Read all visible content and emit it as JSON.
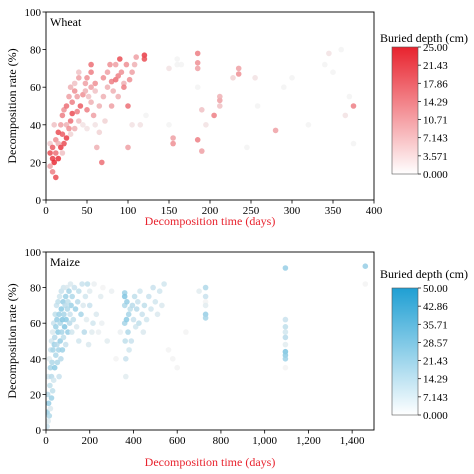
{
  "chart_data": [
    {
      "type": "scatter",
      "panel_label": "Wheat",
      "xlabel": "Decomposition time (days)",
      "ylabel": "Decomposition rate (%)",
      "xlim": [
        0,
        400
      ],
      "ylim": [
        0,
        100
      ],
      "xticks": [
        0,
        50,
        100,
        150,
        200,
        250,
        300,
        350,
        400
      ],
      "xtick_labels": [
        "0",
        "50",
        "100",
        "150",
        "200",
        "250",
        "300",
        "350",
        "400"
      ],
      "yticks": [
        0,
        20,
        40,
        60,
        80,
        100
      ],
      "ytick_labels": [
        "0",
        "20",
        "40",
        "60",
        "80",
        "100"
      ],
      "grid": false,
      "colorbar": {
        "title": "Buried depth (cm)",
        "min": 0,
        "max": 25,
        "low_color": "#ffffff",
        "high_color": "#e8232e",
        "tick_labels": [
          "25.00",
          "21.43",
          "17.86",
          "14.29",
          "10.71",
          "7.143",
          "3.571",
          "0.000"
        ]
      },
      "points": [
        [
          5,
          18,
          10
        ],
        [
          5,
          25,
          20
        ],
        [
          5,
          30,
          5
        ],
        [
          8,
          22,
          22
        ],
        [
          8,
          15,
          14
        ],
        [
          8,
          28,
          18
        ],
        [
          10,
          20,
          24
        ],
        [
          10,
          40,
          6
        ],
        [
          12,
          25,
          16
        ],
        [
          12,
          32,
          12
        ],
        [
          12,
          12,
          20
        ],
        [
          15,
          22,
          23
        ],
        [
          15,
          30,
          8
        ],
        [
          15,
          36,
          20
        ],
        [
          18,
          28,
          22
        ],
        [
          18,
          40,
          10
        ],
        [
          20,
          35,
          18
        ],
        [
          20,
          45,
          14
        ],
        [
          20,
          25,
          6
        ],
        [
          22,
          30,
          20
        ],
        [
          22,
          48,
          12
        ],
        [
          25,
          40,
          8
        ],
        [
          25,
          50,
          16
        ],
        [
          25,
          33,
          22
        ],
        [
          28,
          38,
          12
        ],
        [
          28,
          55,
          10
        ],
        [
          30,
          42,
          16
        ],
        [
          30,
          60,
          8
        ],
        [
          30,
          35,
          4
        ],
        [
          32,
          46,
          20
        ],
        [
          32,
          52,
          14
        ],
        [
          35,
          38,
          8
        ],
        [
          35,
          58,
          12
        ],
        [
          35,
          62,
          6
        ],
        [
          38,
          47,
          14
        ],
        [
          38,
          55,
          10
        ],
        [
          40,
          42,
          6
        ],
        [
          40,
          65,
          10
        ],
        [
          40,
          68,
          6
        ],
        [
          42,
          50,
          18
        ],
        [
          45,
          56,
          12
        ],
        [
          45,
          40,
          2
        ],
        [
          48,
          58,
          8
        ],
        [
          48,
          62,
          10
        ],
        [
          50,
          48,
          14
        ],
        [
          50,
          65,
          12
        ],
        [
          50,
          38,
          2
        ],
        [
          52,
          55,
          6
        ],
        [
          55,
          60,
          10
        ],
        [
          55,
          68,
          14
        ],
        [
          55,
          72,
          16
        ],
        [
          55,
          52,
          8
        ],
        [
          58,
          45,
          10
        ],
        [
          60,
          58,
          6
        ],
        [
          60,
          62,
          12
        ],
        [
          60,
          40,
          2
        ],
        [
          62,
          28,
          8
        ],
        [
          65,
          36,
          4
        ],
        [
          65,
          50,
          8
        ],
        [
          68,
          20,
          16
        ],
        [
          70,
          65,
          12
        ],
        [
          70,
          55,
          8
        ],
        [
          72,
          42,
          4
        ],
        [
          75,
          60,
          8
        ],
        [
          75,
          68,
          10
        ],
        [
          78,
          72,
          12
        ],
        [
          80,
          50,
          10
        ],
        [
          80,
          63,
          14
        ],
        [
          82,
          58,
          8
        ],
        [
          85,
          72,
          10
        ],
        [
          85,
          64,
          16
        ],
        [
          88,
          66,
          14
        ],
        [
          88,
          55,
          8
        ],
        [
          90,
          75,
          20
        ],
        [
          92,
          68,
          12
        ],
        [
          95,
          62,
          8
        ],
        [
          95,
          60,
          14
        ],
        [
          98,
          72,
          12
        ],
        [
          100,
          50,
          16
        ],
        [
          100,
          28,
          10
        ],
        [
          102,
          64,
          12
        ],
        [
          105,
          68,
          10
        ],
        [
          105,
          40,
          2
        ],
        [
          108,
          72,
          8
        ],
        [
          110,
          76,
          10
        ],
        [
          115,
          40,
          2
        ],
        [
          120,
          77,
          22
        ],
        [
          120,
          75,
          20
        ],
        [
          122,
          45,
          0
        ],
        [
          150,
          70,
          2
        ],
        [
          150,
          40,
          0
        ],
        [
          155,
          30,
          12
        ],
        [
          155,
          33,
          10
        ],
        [
          160,
          75,
          0
        ],
        [
          160,
          72,
          0
        ],
        [
          165,
          72,
          0
        ],
        [
          185,
          78,
          14
        ],
        [
          185,
          73,
          12
        ],
        [
          185,
          70,
          10
        ],
        [
          185,
          32,
          14
        ],
        [
          185,
          60,
          0
        ],
        [
          190,
          48,
          6
        ],
        [
          190,
          26,
          10
        ],
        [
          195,
          40,
          2
        ],
        [
          205,
          45,
          14
        ],
        [
          212,
          53,
          10
        ],
        [
          212,
          55,
          8
        ],
        [
          212,
          50,
          6
        ],
        [
          228,
          65,
          4
        ],
        [
          235,
          67,
          12
        ],
        [
          235,
          70,
          10
        ],
        [
          245,
          28,
          0
        ],
        [
          255,
          65,
          2
        ],
        [
          258,
          50,
          0
        ],
        [
          280,
          37,
          10
        ],
        [
          290,
          60,
          0
        ],
        [
          300,
          65,
          0
        ],
        [
          320,
          40,
          0
        ],
        [
          340,
          72,
          0
        ],
        [
          345,
          78,
          2
        ],
        [
          350,
          68,
          0
        ],
        [
          360,
          80,
          0
        ],
        [
          365,
          45,
          2
        ],
        [
          370,
          55,
          0
        ],
        [
          375,
          30,
          0
        ],
        [
          375,
          50,
          14
        ]
      ]
    },
    {
      "type": "scatter",
      "panel_label": "Maize",
      "xlabel": "Decomposition time (days)",
      "ylabel": "Decomposition rate (%)",
      "xlim": [
        0,
        1500
      ],
      "ylim": [
        0,
        100
      ],
      "xticks": [
        0,
        200,
        400,
        600,
        800,
        1000,
        1200,
        1400
      ],
      "xtick_labels": [
        "0",
        "200",
        "400",
        "600",
        "800",
        "1,000",
        "1,200",
        "1,400"
      ],
      "yticks": [
        0,
        20,
        40,
        60,
        80,
        100
      ],
      "ytick_labels": [
        "0",
        "20",
        "40",
        "60",
        "80",
        "100"
      ],
      "grid": false,
      "colorbar": {
        "title": "Buried depth (cm)",
        "min": 0,
        "max": 50,
        "low_color": "#ffffff",
        "high_color": "#1f9fd3",
        "tick_labels": [
          "50.00",
          "42.86",
          "35.71",
          "28.57",
          "21.43",
          "14.29",
          "7.143",
          "0.000"
        ]
      },
      "points": [
        [
          5,
          2,
          10
        ],
        [
          5,
          10,
          20
        ],
        [
          8,
          20,
          14
        ],
        [
          10,
          5,
          6
        ],
        [
          10,
          30,
          8
        ],
        [
          12,
          15,
          22
        ],
        [
          15,
          40,
          4
        ],
        [
          15,
          8,
          16
        ],
        [
          18,
          25,
          12
        ],
        [
          20,
          35,
          18
        ],
        [
          20,
          12,
          6
        ],
        [
          22,
          45,
          10
        ],
        [
          25,
          30,
          14
        ],
        [
          25,
          50,
          8
        ],
        [
          25,
          18,
          20
        ],
        [
          28,
          38,
          16
        ],
        [
          30,
          55,
          6
        ],
        [
          30,
          22,
          12
        ],
        [
          32,
          45,
          18
        ],
        [
          35,
          60,
          10
        ],
        [
          35,
          28,
          8
        ],
        [
          38,
          48,
          20
        ],
        [
          40,
          52,
          14
        ],
        [
          40,
          35,
          24
        ],
        [
          42,
          65,
          12
        ],
        [
          45,
          42,
          16
        ],
        [
          45,
          58,
          20
        ],
        [
          48,
          70,
          10
        ],
        [
          50,
          48,
          14
        ],
        [
          50,
          62,
          22
        ],
        [
          52,
          38,
          16
        ],
        [
          55,
          72,
          12
        ],
        [
          55,
          55,
          24
        ],
        [
          58,
          45,
          18
        ],
        [
          60,
          65,
          20
        ],
        [
          60,
          30,
          10
        ],
        [
          62,
          75,
          8
        ],
        [
          65,
          50,
          22
        ],
        [
          65,
          60,
          16
        ],
        [
          68,
          40,
          14
        ],
        [
          70,
          78,
          10
        ],
        [
          70,
          68,
          24
        ],
        [
          72,
          55,
          18
        ],
        [
          75,
          45,
          20
        ],
        [
          75,
          62,
          26
        ],
        [
          78,
          72,
          22
        ],
        [
          80,
          52,
          12
        ],
        [
          80,
          80,
          8
        ],
        [
          82,
          65,
          18
        ],
        [
          85,
          58,
          26
        ],
        [
          88,
          70,
          14
        ],
        [
          90,
          75,
          20
        ],
        [
          90,
          48,
          10
        ],
        [
          92,
          62,
          24
        ],
        [
          95,
          80,
          6
        ],
        [
          98,
          68,
          16
        ],
        [
          100,
          55,
          22
        ],
        [
          100,
          72,
          12
        ],
        [
          105,
          78,
          18
        ],
        [
          108,
          60,
          14
        ],
        [
          110,
          65,
          10
        ],
        [
          112,
          82,
          6
        ],
        [
          115,
          70,
          20
        ],
        [
          118,
          55,
          8
        ],
        [
          120,
          75,
          16
        ],
        [
          125,
          62,
          12
        ],
        [
          130,
          80,
          10
        ],
        [
          135,
          68,
          20
        ],
        [
          140,
          58,
          6
        ],
        [
          145,
          72,
          14
        ],
        [
          150,
          50,
          8
        ],
        [
          150,
          78,
          12
        ],
        [
          160,
          65,
          18
        ],
        [
          165,
          82,
          10
        ],
        [
          170,
          70,
          6
        ],
        [
          175,
          55,
          14
        ],
        [
          180,
          75,
          8
        ],
        [
          185,
          62,
          4
        ],
        [
          190,
          82,
          12
        ],
        [
          195,
          48,
          6
        ],
        [
          200,
          70,
          10
        ],
        [
          200,
          78,
          4
        ],
        [
          210,
          55,
          4
        ],
        [
          215,
          60,
          8
        ],
        [
          220,
          82,
          2
        ],
        [
          230,
          65,
          6
        ],
        [
          240,
          55,
          2
        ],
        [
          250,
          75,
          4
        ],
        [
          255,
          60,
          2
        ],
        [
          260,
          80,
          0
        ],
        [
          280,
          50,
          4
        ],
        [
          300,
          78,
          2
        ],
        [
          320,
          40,
          0
        ],
        [
          340,
          55,
          2
        ],
        [
          360,
          77,
          20
        ],
        [
          360,
          75,
          26
        ],
        [
          360,
          60,
          18
        ],
        [
          360,
          70,
          16
        ],
        [
          362,
          50,
          12
        ],
        [
          365,
          40,
          10
        ],
        [
          365,
          30,
          4
        ],
        [
          368,
          62,
          24
        ],
        [
          370,
          72,
          22
        ],
        [
          375,
          55,
          16
        ],
        [
          378,
          65,
          18
        ],
        [
          380,
          45,
          8
        ],
        [
          385,
          68,
          12
        ],
        [
          390,
          50,
          10
        ],
        [
          395,
          70,
          14
        ],
        [
          400,
          62,
          10
        ],
        [
          405,
          75,
          12
        ],
        [
          410,
          58,
          8
        ],
        [
          415,
          68,
          14
        ],
        [
          420,
          72,
          10
        ],
        [
          425,
          60,
          12
        ],
        [
          430,
          78,
          8
        ],
        [
          440,
          65,
          10
        ],
        [
          445,
          55,
          6
        ],
        [
          450,
          70,
          12
        ],
        [
          460,
          62,
          8
        ],
        [
          470,
          75,
          10
        ],
        [
          480,
          68,
          8
        ],
        [
          490,
          80,
          10
        ],
        [
          500,
          72,
          8
        ],
        [
          510,
          65,
          6
        ],
        [
          520,
          78,
          8
        ],
        [
          530,
          70,
          6
        ],
        [
          540,
          82,
          8
        ],
        [
          560,
          45,
          0
        ],
        [
          580,
          40,
          0
        ],
        [
          600,
          35,
          0
        ],
        [
          640,
          55,
          0
        ],
        [
          700,
          78,
          4
        ],
        [
          730,
          80,
          16
        ],
        [
          730,
          75,
          10
        ],
        [
          730,
          72,
          0
        ],
        [
          730,
          65,
          22
        ],
        [
          730,
          63,
          18
        ],
        [
          730,
          70,
          4
        ],
        [
          1095,
          91,
          22
        ],
        [
          1095,
          62,
          10
        ],
        [
          1095,
          58,
          12
        ],
        [
          1095,
          55,
          8
        ],
        [
          1095,
          52,
          14
        ],
        [
          1095,
          48,
          4
        ],
        [
          1095,
          44,
          28
        ],
        [
          1095,
          42,
          24
        ],
        [
          1095,
          40,
          20
        ],
        [
          1095,
          35,
          0
        ],
        [
          1460,
          92,
          22
        ],
        [
          1460,
          82,
          0
        ]
      ]
    }
  ]
}
